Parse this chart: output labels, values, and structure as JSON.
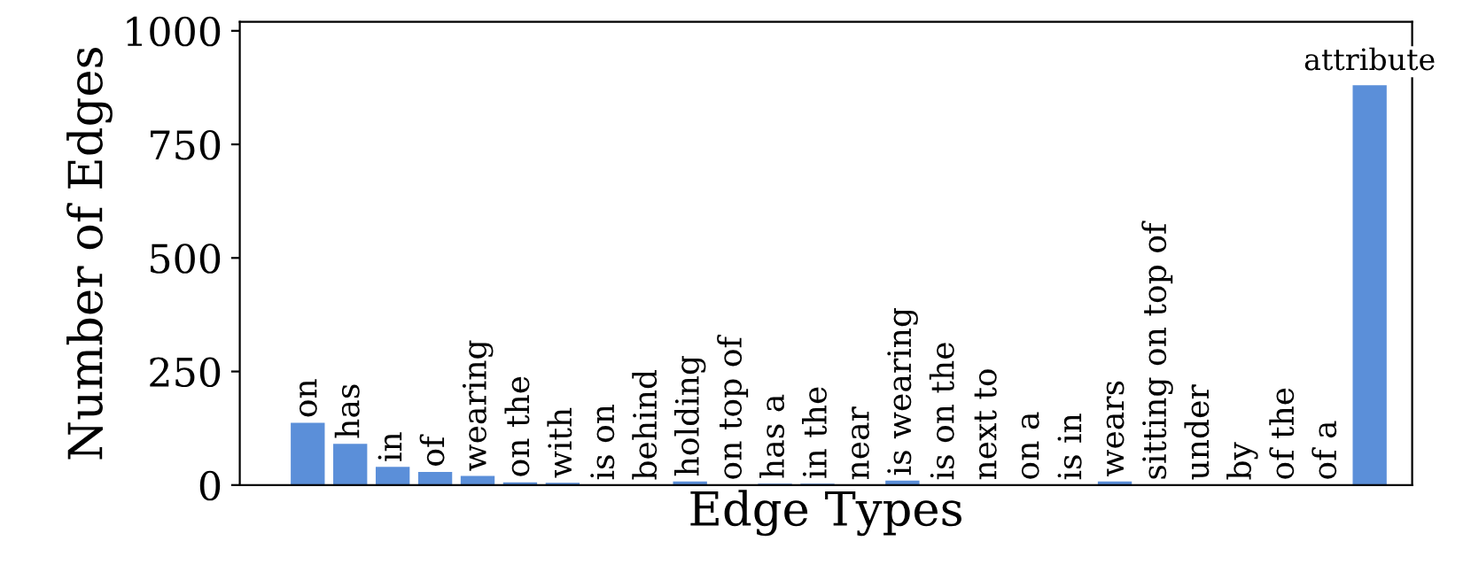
{
  "chart_data": {
    "type": "bar",
    "xlabel": "Edge Types",
    "ylabel": "Number of Edges",
    "categories": [
      "on",
      "has",
      "in",
      "of",
      "wearing",
      "on the",
      "with",
      "is on",
      "behind",
      "holding",
      "on top of",
      "has a",
      "in the",
      "near",
      "is wearing",
      "is on the",
      "next to",
      "on a",
      "is in",
      "wears",
      "sitting on top of",
      "under",
      "by",
      "of the",
      "of a",
      "attribute"
    ],
    "values": [
      137,
      91,
      40,
      29,
      20,
      6,
      5,
      0,
      0,
      8,
      0,
      3,
      3,
      0,
      10,
      0,
      0,
      0,
      0,
      8,
      0,
      0,
      0,
      0,
      0,
      880
    ],
    "color": "#5b8fd9",
    "ylim": [
      0,
      1020
    ],
    "yticks": [
      0,
      250,
      500,
      750,
      1000
    ],
    "grid": false
  }
}
